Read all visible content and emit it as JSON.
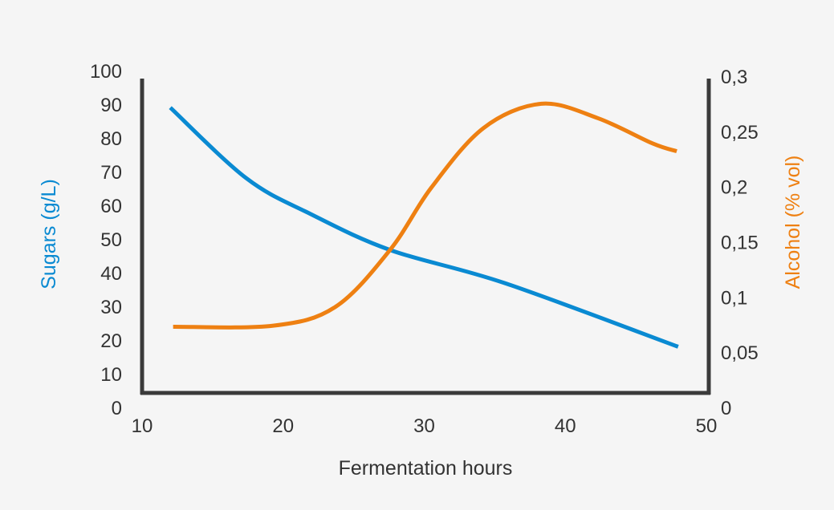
{
  "chart_data": {
    "type": "line",
    "xlabel": "Fermentation hours",
    "ylabel": "Sugars (g/L)",
    "y2label": "Alcohol (% vol)",
    "xlim": [
      10,
      50
    ],
    "ylim": [
      0,
      100
    ],
    "y2lim": [
      0,
      0.3
    ],
    "x_ticks": [
      "10",
      "20",
      "30",
      "40",
      "50"
    ],
    "y_ticks": [
      "0",
      "10",
      "20",
      "30",
      "40",
      "50",
      "60",
      "70",
      "80",
      "90",
      "100"
    ],
    "y2_ticks": [
      "0",
      "0,05",
      "0,1",
      "0,15",
      "0,2",
      "0,25",
      "0,3"
    ],
    "grid": false,
    "colors": {
      "sugars": "#0a8ad2",
      "alcohol": "#ee8012",
      "axis": "#3a3a3a",
      "text": "#333333",
      "background": "#f5f5f5"
    },
    "series": [
      {
        "axis": "left",
        "color": "#0a8ad2",
        "x": [
          12,
          17.4,
          21.9,
          27.6,
          35.7,
          48
        ],
        "y": [
          89,
          68,
          57.5,
          46.7,
          36.9,
          18
        ]
      },
      {
        "axis": "right",
        "color": "#ee8012",
        "x": [
          12.2,
          19.3,
          23.7,
          27.6,
          30.5,
          34.2,
          38.3,
          42.3,
          46.2,
          47.9
        ],
        "y": [
          0.073,
          0.074,
          0.091,
          0.143,
          0.199,
          0.253,
          0.275,
          0.262,
          0.239,
          0.232
        ]
      }
    ]
  }
}
